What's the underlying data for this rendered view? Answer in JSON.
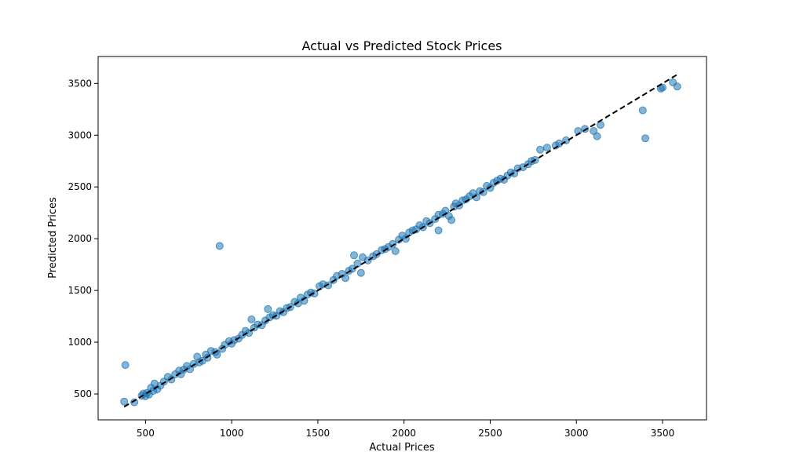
{
  "chart_data": {
    "type": "scatter",
    "title": "Actual vs Predicted Stock Prices",
    "xlabel": "Actual Prices",
    "ylabel": "Predicted Prices",
    "xlim": [
      225,
      3755
    ],
    "ylim": [
      250,
      3760
    ],
    "xticks": [
      500,
      1000,
      1500,
      2000,
      2500,
      3000,
      3500
    ],
    "yticks": [
      500,
      1000,
      1500,
      2000,
      2500,
      3000,
      3500
    ],
    "grid": false,
    "legend": "none",
    "colors": {
      "points": "#1f77b4",
      "reference_line": "#000000"
    },
    "point_alpha": 0.55,
    "reference_line": {
      "style": "dashed",
      "x": [
        376,
        3585
      ],
      "y": [
        376,
        3585
      ]
    },
    "series": [
      {
        "points": [
          [
            376,
            427
          ],
          [
            383,
            780
          ],
          [
            435,
            420
          ],
          [
            478,
            483
          ],
          [
            487,
            503
          ],
          [
            499,
            478
          ],
          [
            508,
            510
          ],
          [
            520,
            495
          ],
          [
            532,
            560
          ],
          [
            545,
            530
          ],
          [
            552,
            600
          ],
          [
            568,
            545
          ],
          [
            586,
            580
          ],
          [
            607,
            620
          ],
          [
            630,
            665
          ],
          [
            650,
            640
          ],
          [
            672,
            690
          ],
          [
            695,
            725
          ],
          [
            705,
            690
          ],
          [
            722,
            735
          ],
          [
            740,
            770
          ],
          [
            758,
            740
          ],
          [
            780,
            790
          ],
          [
            800,
            860
          ],
          [
            812,
            805
          ],
          [
            830,
            820
          ],
          [
            850,
            880
          ],
          [
            860,
            850
          ],
          [
            880,
            915
          ],
          [
            905,
            905
          ],
          [
            915,
            880
          ],
          [
            930,
            1930
          ],
          [
            945,
            935
          ],
          [
            960,
            975
          ],
          [
            985,
            1010
          ],
          [
            1000,
            985
          ],
          [
            1015,
            1020
          ],
          [
            1040,
            1035
          ],
          [
            1060,
            1070
          ],
          [
            1080,
            1110
          ],
          [
            1100,
            1090
          ],
          [
            1115,
            1220
          ],
          [
            1130,
            1140
          ],
          [
            1150,
            1170
          ],
          [
            1175,
            1165
          ],
          [
            1195,
            1210
          ],
          [
            1210,
            1320
          ],
          [
            1220,
            1240
          ],
          [
            1240,
            1260
          ],
          [
            1260,
            1255
          ],
          [
            1280,
            1300
          ],
          [
            1300,
            1290
          ],
          [
            1320,
            1330
          ],
          [
            1340,
            1340
          ],
          [
            1365,
            1390
          ],
          [
            1385,
            1375
          ],
          [
            1400,
            1430
          ],
          [
            1420,
            1400
          ],
          [
            1440,
            1460
          ],
          [
            1460,
            1480
          ],
          [
            1480,
            1470
          ],
          [
            1510,
            1540
          ],
          [
            1530,
            1560
          ],
          [
            1560,
            1550
          ],
          [
            1590,
            1600
          ],
          [
            1610,
            1640
          ],
          [
            1640,
            1660
          ],
          [
            1660,
            1620
          ],
          [
            1680,
            1690
          ],
          [
            1700,
            1710
          ],
          [
            1710,
            1840
          ],
          [
            1730,
            1760
          ],
          [
            1750,
            1670
          ],
          [
            1760,
            1820
          ],
          [
            1790,
            1790
          ],
          [
            1820,
            1830
          ],
          [
            1840,
            1850
          ],
          [
            1870,
            1890
          ],
          [
            1890,
            1900
          ],
          [
            1910,
            1920
          ],
          [
            1935,
            1950
          ],
          [
            1950,
            1880
          ],
          [
            1970,
            1990
          ],
          [
            1990,
            2030
          ],
          [
            2010,
            2000
          ],
          [
            2030,
            2060
          ],
          [
            2050,
            2080
          ],
          [
            2070,
            2090
          ],
          [
            2090,
            2130
          ],
          [
            2110,
            2110
          ],
          [
            2130,
            2170
          ],
          [
            2150,
            2150
          ],
          [
            2180,
            2190
          ],
          [
            2200,
            2230
          ],
          [
            2200,
            2080
          ],
          [
            2225,
            2240
          ],
          [
            2240,
            2270
          ],
          [
            2260,
            2220
          ],
          [
            2275,
            2180
          ],
          [
            2290,
            2310
          ],
          [
            2300,
            2340
          ],
          [
            2320,
            2320
          ],
          [
            2340,
            2370
          ],
          [
            2360,
            2380
          ],
          [
            2380,
            2410
          ],
          [
            2400,
            2440
          ],
          [
            2420,
            2400
          ],
          [
            2440,
            2460
          ],
          [
            2460,
            2450
          ],
          [
            2480,
            2510
          ],
          [
            2500,
            2490
          ],
          [
            2520,
            2540
          ],
          [
            2540,
            2560
          ],
          [
            2560,
            2580
          ],
          [
            2580,
            2570
          ],
          [
            2600,
            2610
          ],
          [
            2620,
            2640
          ],
          [
            2640,
            2630
          ],
          [
            2660,
            2680
          ],
          [
            2690,
            2690
          ],
          [
            2720,
            2720
          ],
          [
            2740,
            2750
          ],
          [
            2760,
            2760
          ],
          [
            2790,
            2860
          ],
          [
            2830,
            2880
          ],
          [
            2880,
            2900
          ],
          [
            2900,
            2920
          ],
          [
            2940,
            2950
          ],
          [
            3010,
            3040
          ],
          [
            3050,
            3060
          ],
          [
            3100,
            3040
          ],
          [
            3120,
            2990
          ],
          [
            3140,
            3100
          ],
          [
            3385,
            3240
          ],
          [
            3400,
            2970
          ],
          [
            3490,
            3450
          ],
          [
            3500,
            3460
          ],
          [
            3560,
            3510
          ],
          [
            3585,
            3470
          ]
        ]
      }
    ]
  }
}
